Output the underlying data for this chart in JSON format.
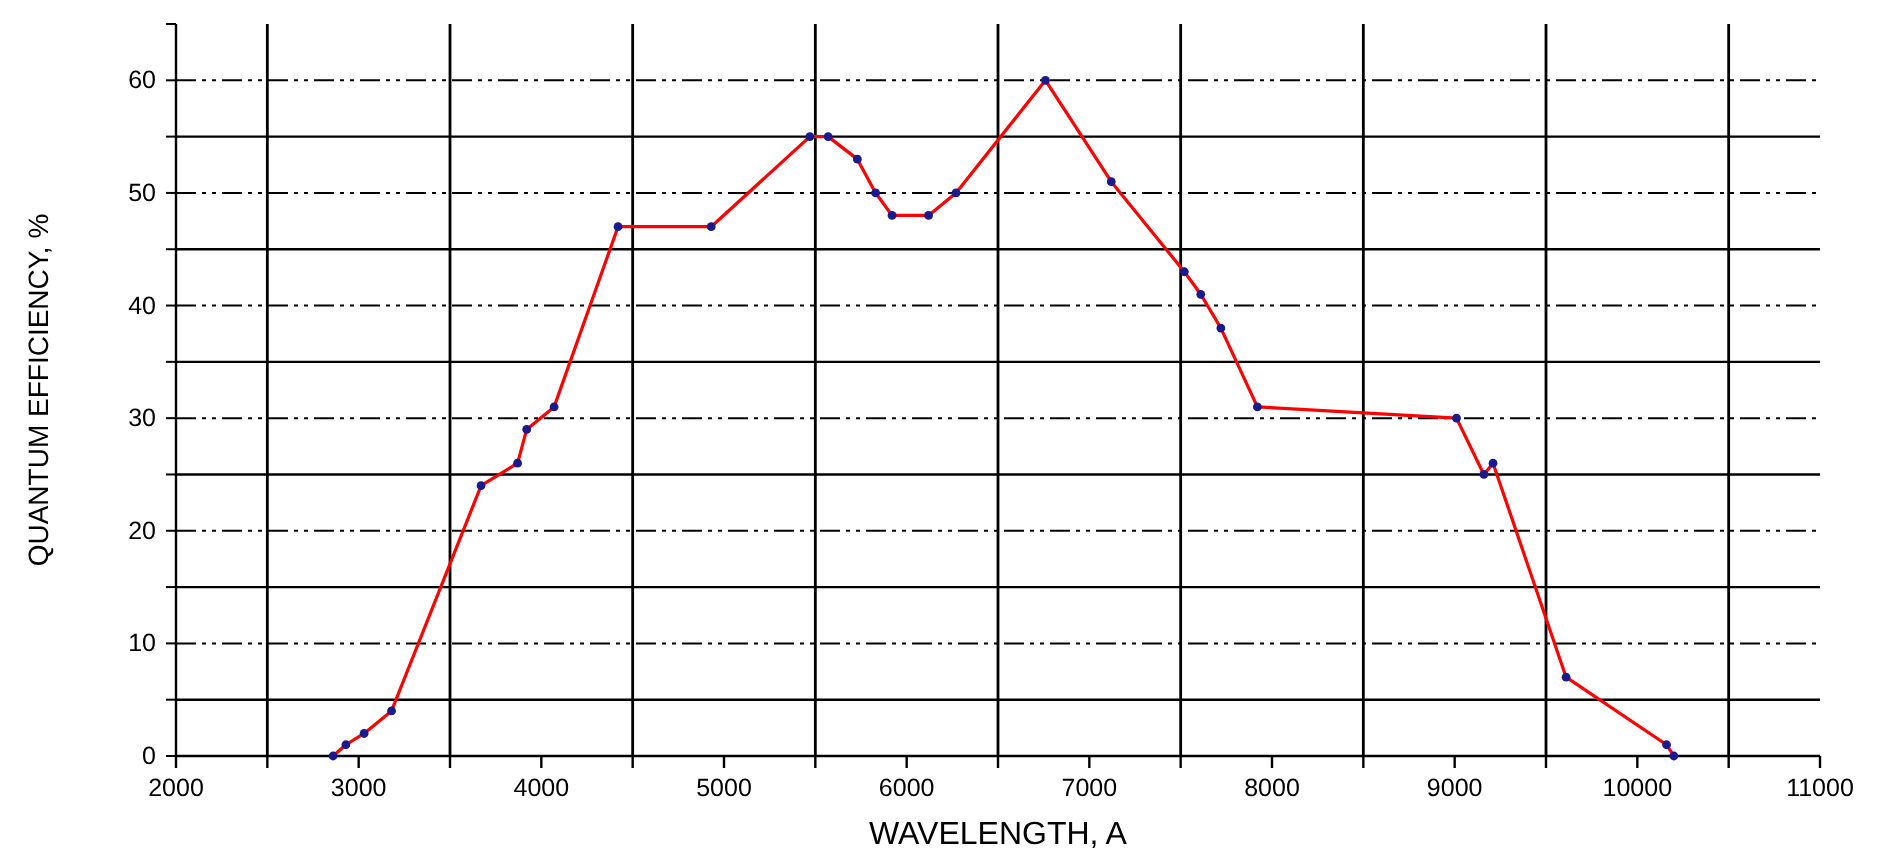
{
  "chart_data": {
    "type": "line",
    "xlabel": "WAVELENGTH, A",
    "ylabel": "QUANTUM EFFICIENCY, %",
    "x": [
      2860,
      2930,
      3030,
      3180,
      3670,
      3870,
      3920,
      4070,
      4420,
      4930,
      5470,
      5570,
      5730,
      5830,
      5920,
      6120,
      6270,
      6760,
      7120,
      7520,
      7610,
      7720,
      7920,
      9010,
      9160,
      9210,
      9610,
      10160,
      10200
    ],
    "series": [
      {
        "color": "#ff0000",
        "colors": [
          "#1a1a8c",
          "#1a1a8c",
          "#1a1a8c",
          "#1a1a8c",
          "#1a1a8c",
          "#1a1a8c",
          "#1a1a8c",
          "#1a1a8c",
          "#1a1a8c",
          "#1a1a8c",
          "#1a1a8c",
          "#1a1a8c",
          "#1a1a8c",
          "#1a1a8c",
          "#1a1a8c",
          "#1a1a8c",
          "#1a1a8c",
          "#1a1a8c",
          "#1a1a8c",
          "#1a1a8c",
          "#1a1a8c",
          "#1a1a8c",
          "#1a1a8c",
          "#1a1a8c",
          "#1a1a8c",
          "#1a1a8c",
          "#1a1a8c",
          "#1a1a8c",
          "#1a1a8c"
        ],
        "values": [
          0,
          1,
          2,
          4,
          24,
          26,
          29,
          31,
          47,
          47,
          55,
          55,
          53,
          50,
          48,
          48,
          50,
          60,
          51,
          43,
          41,
          38,
          31,
          30,
          25,
          26,
          7,
          1,
          0
        ]
      }
    ],
    "xlim": [
      2000,
      11000
    ],
    "xticks": [
      2000,
      {
        "value": 2500,
        "label": null
      },
      3000,
      {
        "value": 3500,
        "label": null
      },
      4000,
      {
        "value": 4500,
        "label": null
      },
      5000,
      {
        "value": 5500,
        "label": null
      },
      6000,
      {
        "value": 6500,
        "label": null
      },
      7000,
      {
        "value": 7500,
        "label": null
      },
      8000,
      {
        "value": 8500,
        "label": null
      },
      9000,
      {
        "value": 9500,
        "label": null
      },
      10000,
      {
        "value": 10500,
        "label": null
      },
      11000
    ],
    "ylim": [
      0,
      65
    ],
    "yticks": [
      0,
      {
        "value": 5,
        "label": null
      },
      10,
      {
        "value": 15,
        "label": null
      },
      20,
      {
        "value": 25,
        "label": null
      },
      30,
      {
        "value": 35,
        "label": null
      },
      40,
      {
        "value": 45,
        "label": null
      },
      50,
      {
        "value": 55,
        "label": null
      },
      60
    ],
    "grid": true,
    "marker": "circle",
    "line_style": "solid"
  }
}
